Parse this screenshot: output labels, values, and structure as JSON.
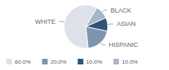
{
  "chart_data": {
    "type": "pie",
    "categories": [
      "WHITE",
      "HISPANIC",
      "ASIAN",
      "BLACK"
    ],
    "values": [
      60,
      20,
      10,
      10
    ],
    "value_labels": [
      "60.0%",
      "20.0%",
      "10.0%",
      "10.0%"
    ],
    "colors": [
      "#dde2ea",
      "#7f95ae",
      "#2f5477",
      "#a8b6c6"
    ],
    "legend": "bottom"
  }
}
